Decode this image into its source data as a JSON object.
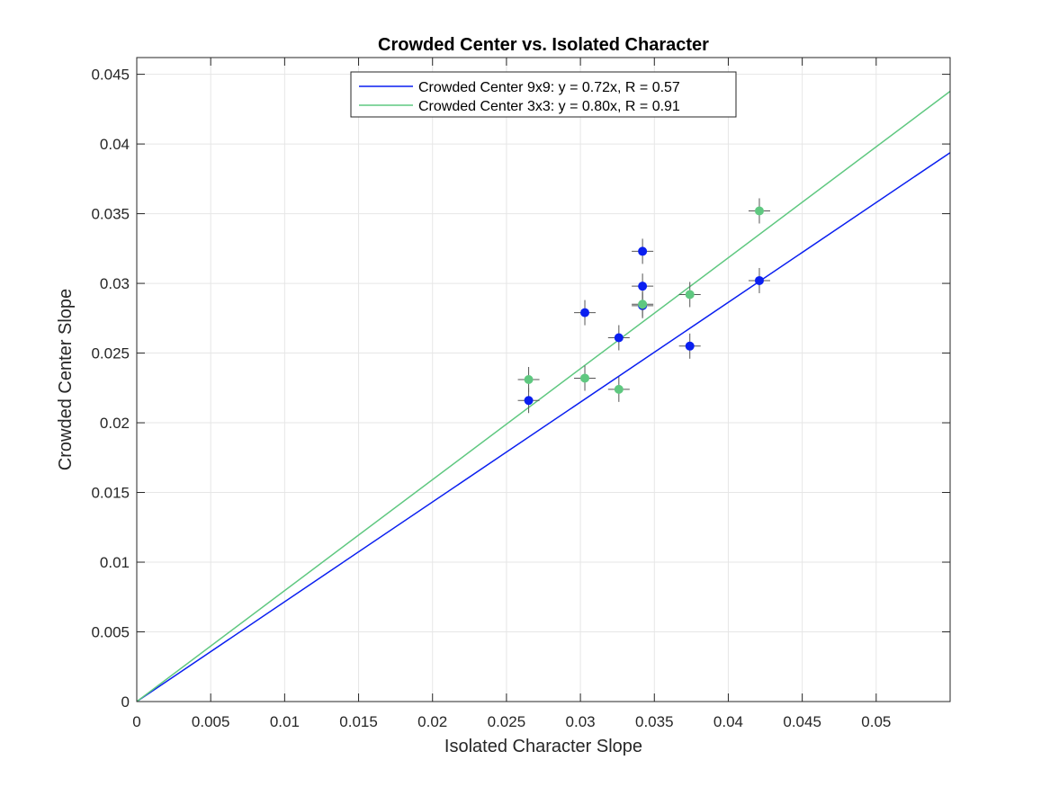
{
  "chart_data": {
    "type": "scatter",
    "title": "Crowded Center vs. Isolated Character",
    "xlabel": "Isolated Character Slope",
    "ylabel": "Crowded Center Slope",
    "xlim": [
      0,
      0.055
    ],
    "ylim": [
      0,
      0.0462
    ],
    "xticks": [
      "0",
      "0.005",
      "0.01",
      "0.015",
      "0.02",
      "0.025",
      "0.03",
      "0.035",
      "0.04",
      "0.045",
      "0.05"
    ],
    "yticks": [
      "0",
      "0.005",
      "0.01",
      "0.015",
      "0.02",
      "0.025",
      "0.03",
      "0.035",
      "0.04",
      "0.045"
    ],
    "grid": true,
    "legend_position": "top-center",
    "series": [
      {
        "name": "Crowded Center 9x9: y = 0.72x, R = 0.57",
        "color": "#0a1ff0",
        "slope": 0.716,
        "points": [
          {
            "x": 0.0265,
            "y": 0.0216
          },
          {
            "x": 0.0303,
            "y": 0.0279
          },
          {
            "x": 0.0326,
            "y": 0.0261
          },
          {
            "x": 0.0342,
            "y": 0.0323
          },
          {
            "x": 0.0342,
            "y": 0.0298
          },
          {
            "x": 0.0342,
            "y": 0.0284
          },
          {
            "x": 0.0374,
            "y": 0.0255
          },
          {
            "x": 0.0421,
            "y": 0.0302
          }
        ]
      },
      {
        "name": "Crowded Center 3x3: y = 0.80x, R = 0.91",
        "color": "#5fc880",
        "slope": 0.796,
        "points": [
          {
            "x": 0.0265,
            "y": 0.0231
          },
          {
            "x": 0.0303,
            "y": 0.0232
          },
          {
            "x": 0.0326,
            "y": 0.0224
          },
          {
            "x": 0.0342,
            "y": 0.0285
          },
          {
            "x": 0.0374,
            "y": 0.0292
          },
          {
            "x": 0.0421,
            "y": 0.0352
          }
        ]
      }
    ]
  }
}
